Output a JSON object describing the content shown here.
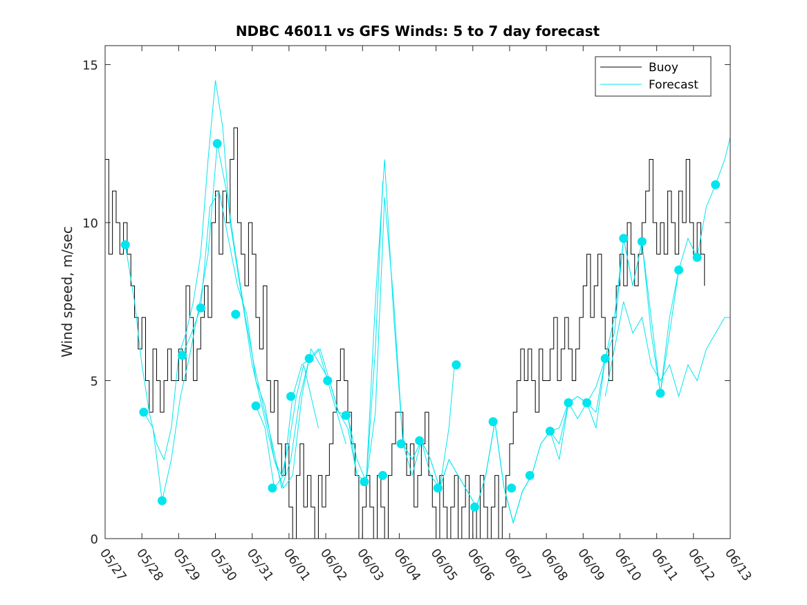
{
  "chart_data": {
    "type": "line",
    "title": "NDBC 46011 vs GFS Winds: 5 to 7 day forecast",
    "xlabel": "",
    "ylabel": "Wind speed, m/sec",
    "xlim": [
      0,
      17
    ],
    "ylim": [
      0,
      15.6
    ],
    "x_ticks": [
      0,
      1,
      2,
      3,
      4,
      5,
      6,
      7,
      8,
      9,
      10,
      11,
      12,
      13,
      14,
      15,
      16,
      17
    ],
    "x_tick_labels": [
      "05/27",
      "05/28",
      "05/29",
      "05/30",
      "05/31",
      "06/01",
      "06/02",
      "06/03",
      "06/04",
      "06/05",
      "06/06",
      "06/07",
      "06/08",
      "06/09",
      "06/10",
      "06/11",
      "06/12",
      "06/13"
    ],
    "y_ticks": [
      0,
      5,
      10,
      15
    ],
    "y_tick_labels": [
      "0",
      "5",
      "10",
      "15"
    ],
    "x_unit": "days since 05/27",
    "grid": false,
    "legend": {
      "position": "top-right",
      "entries": [
        "Buoy",
        "Forecast"
      ]
    },
    "colors": {
      "buoy": "#000000",
      "forecast": "#00e5ee",
      "axes": "#262626"
    },
    "buoy": {
      "name": "Buoy",
      "x": [
        0.0,
        0.1,
        0.2,
        0.3,
        0.4,
        0.5,
        0.6,
        0.7,
        0.8,
        0.9,
        1.0,
        1.1,
        1.2,
        1.3,
        1.4,
        1.5,
        1.6,
        1.7,
        1.8,
        1.9,
        2.0,
        2.1,
        2.2,
        2.3,
        2.4,
        2.5,
        2.6,
        2.7,
        2.8,
        2.9,
        3.0,
        3.1,
        3.2,
        3.3,
        3.4,
        3.5,
        3.6,
        3.7,
        3.8,
        3.9,
        4.0,
        4.1,
        4.2,
        4.3,
        4.4,
        4.5,
        4.6,
        4.7,
        4.8,
        4.9,
        5.0,
        5.1,
        5.2,
        5.3,
        5.4,
        5.5,
        5.6,
        5.7,
        5.8,
        5.9,
        6.0,
        6.1,
        6.2,
        6.3,
        6.4,
        6.5,
        6.6,
        6.7,
        6.8,
        6.9,
        7.0,
        7.1,
        7.2,
        7.3,
        7.4,
        7.5,
        7.6,
        7.7,
        7.8,
        7.9,
        8.0,
        8.1,
        8.2,
        8.3,
        8.4,
        8.5,
        8.6,
        8.7,
        8.8,
        8.9,
        9.0,
        9.1,
        9.2,
        9.3,
        9.4,
        9.5,
        9.6,
        9.7,
        9.8,
        9.9,
        10.0,
        10.1,
        10.2,
        10.3,
        10.4,
        10.5,
        10.6,
        10.7,
        10.8,
        10.9,
        11.0,
        11.1,
        11.2,
        11.3,
        11.4,
        11.5,
        11.6,
        11.7,
        11.8,
        11.9,
        12.0,
        12.1,
        12.2,
        12.3,
        12.4,
        12.5,
        12.6,
        12.7,
        12.8,
        12.9,
        13.0,
        13.1,
        13.2,
        13.3,
        13.4,
        13.5,
        13.6,
        13.7,
        13.8,
        13.9,
        14.0,
        14.1,
        14.2,
        14.3,
        14.4,
        14.5,
        14.6,
        14.7,
        14.8,
        14.9,
        15.0,
        15.1,
        15.2,
        15.3,
        15.4,
        15.5,
        15.6,
        15.7,
        15.8,
        15.9,
        16.0,
        16.1,
        16.2,
        16.3
      ],
      "y": [
        12,
        9,
        11,
        10,
        9,
        10,
        9,
        8,
        7,
        6,
        7,
        5,
        4,
        6,
        5,
        4,
        5,
        6,
        5,
        5,
        6,
        5,
        8,
        7,
        5,
        6,
        7,
        8,
        7,
        10,
        11,
        9,
        11,
        10,
        12,
        13,
        10,
        9,
        8,
        10,
        9,
        7,
        6,
        8,
        5,
        4,
        5,
        3,
        2,
        3,
        1,
        0,
        2,
        3,
        1,
        2,
        1,
        0,
        2,
        1,
        2,
        3,
        4,
        5,
        6,
        5,
        4,
        3,
        2,
        0,
        1,
        2,
        1,
        0,
        2,
        1,
        0,
        2,
        3,
        4,
        4,
        3,
        2,
        3,
        1,
        2,
        3,
        4,
        2,
        1,
        0,
        2,
        1,
        0,
        1,
        2,
        0,
        1,
        2,
        0,
        1,
        0,
        2,
        1,
        0,
        1,
        2,
        0,
        1,
        2,
        3,
        4,
        5,
        6,
        5,
        6,
        5,
        4,
        6,
        5,
        5,
        6,
        7,
        5,
        6,
        7,
        6,
        5,
        6,
        7,
        8,
        9,
        7,
        8,
        9,
        7,
        6,
        5,
        7,
        8,
        9,
        8,
        10,
        9,
        8,
        9,
        10,
        11,
        12,
        10,
        9,
        10,
        9,
        11,
        10,
        9,
        11,
        10,
        12,
        10,
        9,
        10,
        9,
        8
      ]
    },
    "forecast_series": [
      {
        "x": [
          0.55,
          0.8,
          1.0,
          1.2,
          1.4,
          1.6,
          1.8,
          2.0,
          2.2,
          2.4,
          2.6,
          2.8,
          3.0,
          3.2,
          3.4,
          3.6,
          3.8,
          4.0,
          4.2,
          4.4,
          4.6,
          4.8,
          5.0,
          5.2,
          5.4,
          5.6,
          5.8
        ],
        "y": [
          9.3,
          7.5,
          5.5,
          4.0,
          3.0,
          2.5,
          3.5,
          5.8,
          6.5,
          7.5,
          9.0,
          12.0,
          14.5,
          13.0,
          10.0,
          8.5,
          7.0,
          5.5,
          4.5,
          3.5,
          2.5,
          2.0,
          3.0,
          4.5,
          5.5,
          4.5,
          3.5
        ]
      },
      {
        "x": [
          1.05,
          1.3,
          1.55,
          1.8,
          2.05,
          2.3,
          2.55,
          2.8,
          3.05,
          3.3,
          3.55,
          3.8,
          4.05,
          4.3,
          4.55,
          4.8,
          5.05,
          5.3,
          5.55,
          5.8,
          6.05,
          6.3,
          6.55
        ],
        "y": [
          4.0,
          3.5,
          1.2,
          2.5,
          4.5,
          5.8,
          7.3,
          9.0,
          12.5,
          11.0,
          9.0,
          7.1,
          5.5,
          4.2,
          3.0,
          1.6,
          2.5,
          4.5,
          5.7,
          6.0,
          5.0,
          4.0,
          3.0
        ]
      },
      {
        "x": [
          2.1,
          2.35,
          2.6,
          2.85,
          3.1,
          3.35,
          3.6,
          3.85,
          4.1,
          4.35,
          4.6,
          4.85,
          5.1,
          5.35,
          5.6,
          5.85,
          6.1,
          6.35,
          6.6,
          6.85,
          7.1,
          7.35,
          7.55
        ],
        "y": [
          5.8,
          6.5,
          7.3,
          10.5,
          11.0,
          9.5,
          8.0,
          7.1,
          5.0,
          4.2,
          2.5,
          1.6,
          2.0,
          4.5,
          6.0,
          5.5,
          5.0,
          4.0,
          3.5,
          2.0,
          1.8,
          6.0,
          11.3
        ]
      },
      {
        "x": [
          4.1,
          4.35,
          4.6,
          4.85,
          5.1,
          5.35,
          5.6,
          5.85,
          6.1,
          6.35,
          6.6,
          6.85,
          7.1,
          7.35,
          7.6,
          7.85,
          8.1,
          8.35,
          8.6,
          8.85,
          9.1,
          9.35,
          9.5
        ],
        "y": [
          4.2,
          3.5,
          1.6,
          2.0,
          4.5,
          5.5,
          5.7,
          6.0,
          5.0,
          4.0,
          3.9,
          2.0,
          1.8,
          7.5,
          12.0,
          7.0,
          3.0,
          2.5,
          3.1,
          2.5,
          1.6,
          3.5,
          5.5
        ]
      },
      {
        "x": [
          6.1,
          6.35,
          6.6,
          6.85,
          7.1,
          7.35,
          7.6,
          7.85,
          8.1,
          8.35,
          8.6,
          8.85,
          9.1,
          9.35,
          9.6,
          9.85,
          10.1,
          10.35,
          10.6,
          10.85,
          11.1,
          11.35,
          11.6
        ],
        "y": [
          5.0,
          4.0,
          3.9,
          2.5,
          1.8,
          4.0,
          10.8,
          7.5,
          3.0,
          2.5,
          3.1,
          2.0,
          1.6,
          2.5,
          2.0,
          1.5,
          1.0,
          2.0,
          3.7,
          1.6,
          0.5,
          1.5,
          2.0
        ]
      },
      {
        "x": [
          8.1,
          8.35,
          8.6,
          8.85,
          9.1,
          9.35,
          9.6,
          9.85,
          10.1,
          10.35,
          10.6,
          10.85,
          11.1,
          11.35,
          11.6,
          11.85,
          12.1,
          12.35,
          12.6,
          12.85,
          13.1,
          13.35,
          13.6
        ],
        "y": [
          3.0,
          2.0,
          3.1,
          2.5,
          1.6,
          2.5,
          2.0,
          1.5,
          1.0,
          2.0,
          3.7,
          1.6,
          0.5,
          1.5,
          2.0,
          3.0,
          3.4,
          3.5,
          4.3,
          4.5,
          4.3,
          4.8,
          5.7
        ]
      },
      {
        "x": [
          10.1,
          10.35,
          10.6,
          10.85,
          11.1,
          11.35,
          11.6,
          11.85,
          12.1,
          12.35,
          12.6,
          12.85,
          13.1,
          13.35,
          13.6,
          13.85,
          14.1,
          14.35,
          14.6,
          14.85,
          15.1,
          15.35,
          15.6
        ],
        "y": [
          1.0,
          2.0,
          3.7,
          1.6,
          0.5,
          1.5,
          2.0,
          3.0,
          3.4,
          2.5,
          4.3,
          4.5,
          4.3,
          4.0,
          5.7,
          6.5,
          9.5,
          8.0,
          9.4,
          7.0,
          4.6,
          6.5,
          8.5
        ]
      },
      {
        "x": [
          12.1,
          12.35,
          12.6,
          12.85,
          13.1,
          13.35,
          13.6,
          13.85,
          14.1,
          14.35,
          14.6,
          14.85,
          15.1,
          15.35,
          15.6,
          15.85,
          16.1,
          16.35,
          16.6,
          16.85,
          17.0
        ],
        "y": [
          3.4,
          3.0,
          4.3,
          3.8,
          4.3,
          3.5,
          5.7,
          7.0,
          9.5,
          8.0,
          9.4,
          6.5,
          4.6,
          7.0,
          8.5,
          9.5,
          8.9,
          10.5,
          11.2,
          12.0,
          12.7
        ]
      },
      {
        "x": [
          13.6,
          13.85,
          14.1,
          14.35,
          14.6,
          14.85,
          15.1,
          15.35,
          15.6,
          15.85,
          16.1,
          16.35,
          16.6,
          16.85,
          17.0
        ],
        "y": [
          4.5,
          6.0,
          7.5,
          6.5,
          7.0,
          5.5,
          5.0,
          5.5,
          4.5,
          5.5,
          5.0,
          6.0,
          6.5,
          7.0,
          7.0
        ]
      }
    ],
    "forecast_markers": {
      "x": [
        0.55,
        1.05,
        1.55,
        2.1,
        2.6,
        3.05,
        3.55,
        4.1,
        4.55,
        5.05,
        5.55,
        6.05,
        6.55,
        7.05,
        7.55,
        8.05,
        8.55,
        9.05,
        9.55,
        10.05,
        10.55,
        11.05,
        11.55,
        12.1,
        12.6,
        13.1,
        13.6,
        14.1,
        14.6,
        15.1,
        15.6,
        16.1,
        16.6
      ],
      "y": [
        9.3,
        4.0,
        1.2,
        5.8,
        7.3,
        12.5,
        7.1,
        4.2,
        1.6,
        4.5,
        5.7,
        5.0,
        3.9,
        1.8,
        2.0,
        3.0,
        3.1,
        1.6,
        5.5,
        1.0,
        3.7,
        1.6,
        2.0,
        3.4,
        4.3,
        4.3,
        5.7,
        9.5,
        9.4,
        4.6,
        8.5,
        8.9,
        11.2
      ]
    }
  }
}
